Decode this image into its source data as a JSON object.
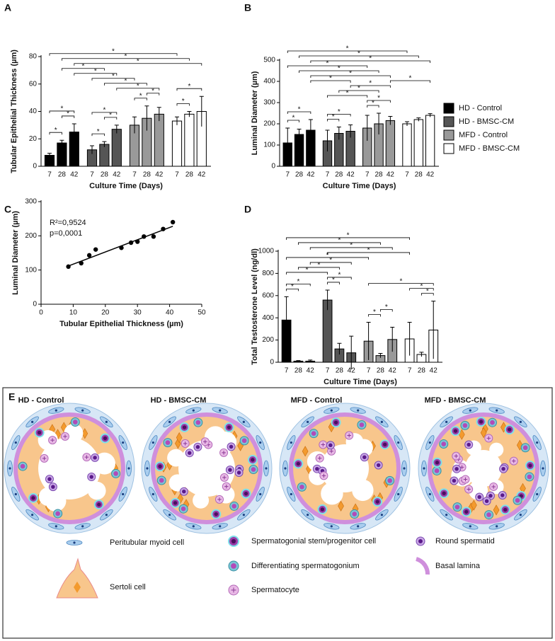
{
  "chart_data": [
    {
      "type": "bar",
      "label": "A",
      "ylabel": "Tubular Epithelial Thickness (µm)",
      "xlabel": "Culture Time (Days)",
      "categories": [
        "7",
        "28",
        "42"
      ],
      "series": [
        {
          "name": "HD - Control",
          "color": "#000000",
          "values": [
            8,
            17,
            25
          ],
          "errors": [
            1.5,
            2,
            6
          ]
        },
        {
          "name": "HD - BMSC-CM",
          "color": "#555555",
          "values": [
            12,
            16,
            27
          ],
          "errors": [
            3,
            2,
            3
          ]
        },
        {
          "name": "MFD - Control",
          "color": "#999999",
          "values": [
            30,
            35,
            38
          ],
          "errors": [
            6,
            9,
            5
          ]
        },
        {
          "name": "MFD - BMSC-CM",
          "color": "#ffffff",
          "values": [
            33,
            38,
            40
          ],
          "errors": [
            3,
            2,
            11
          ]
        }
      ],
      "ylim": [
        0,
        80
      ],
      "yticks": [
        0,
        20,
        40,
        60,
        80
      ],
      "comparisons": [
        {
          "bars": [
            0,
            1
          ],
          "label": "*"
        },
        {
          "bars": [
            1,
            2
          ],
          "label": "*"
        },
        {
          "bars": [
            0,
            2
          ],
          "label": "*"
        },
        {
          "bars": [
            3,
            4
          ],
          "label": "*"
        },
        {
          "bars": [
            4,
            5
          ],
          "label": "*"
        },
        {
          "bars": [
            3,
            5
          ],
          "label": "*"
        },
        {
          "bars": [
            6,
            7
          ],
          "label": "*"
        },
        {
          "bars": [
            7,
            8
          ],
          "label": "*"
        },
        {
          "bars": [
            9,
            10
          ],
          "label": "*"
        },
        {
          "bars": [
            9,
            11
          ],
          "label": "*"
        },
        {
          "bars": [
            5,
            8
          ],
          "label": "*"
        },
        {
          "bars": [
            4,
            7
          ],
          "label": "*"
        },
        {
          "bars": [
            3,
            6
          ],
          "label": "*"
        },
        {
          "bars": [
            2,
            5
          ],
          "label": "*"
        },
        {
          "bars": [
            1,
            4
          ],
          "label": "*"
        },
        {
          "bars": [
            2,
            11
          ],
          "label": "*"
        },
        {
          "bars": [
            1,
            10
          ],
          "label": "*"
        },
        {
          "bars": [
            0,
            9
          ],
          "label": "*"
        }
      ]
    },
    {
      "type": "bar",
      "label": "B",
      "ylabel": "Luminal Diameter (µm)",
      "xlabel": "Culture Time (Days)",
      "categories": [
        "7",
        "28",
        "42"
      ],
      "series": [
        {
          "color": "#000000",
          "values": [
            110,
            150,
            170
          ],
          "errors": [
            70,
            25,
            50
          ]
        },
        {
          "color": "#555555",
          "values": [
            120,
            155,
            165
          ],
          "errors": [
            50,
            30,
            30
          ]
        },
        {
          "color": "#999999",
          "values": [
            180,
            200,
            215
          ],
          "errors": [
            60,
            50,
            20
          ]
        },
        {
          "color": "#ffffff",
          "values": [
            200,
            220,
            240
          ],
          "errors": [
            10,
            8,
            8
          ]
        }
      ],
      "ylim": [
        0,
        500
      ],
      "yticks": [
        0,
        100,
        200,
        300,
        400,
        500
      ],
      "comparisons": [
        {
          "bars": [
            0,
            1
          ],
          "label": "*"
        },
        {
          "bars": [
            0,
            2
          ],
          "label": "*"
        },
        {
          "bars": [
            3,
            4
          ],
          "label": "*"
        },
        {
          "bars": [
            3,
            5
          ],
          "label": "*"
        },
        {
          "bars": [
            6,
            7
          ],
          "label": "*"
        },
        {
          "bars": [
            6,
            8
          ],
          "label": "*"
        },
        {
          "bars": [
            3,
            6
          ],
          "label": "*"
        },
        {
          "bars": [
            4,
            7
          ],
          "label": "*"
        },
        {
          "bars": [
            5,
            8
          ],
          "label": "*"
        },
        {
          "bars": [
            8,
            11
          ],
          "label": "*"
        },
        {
          "bars": [
            2,
            5
          ],
          "label": "*"
        },
        {
          "bars": [
            2,
            8
          ],
          "label": "*"
        },
        {
          "bars": [
            1,
            7
          ],
          "label": "*"
        },
        {
          "bars": [
            0,
            6
          ],
          "label": "*"
        },
        {
          "bars": [
            2,
            11
          ],
          "label": "*"
        },
        {
          "bars": [
            1,
            10
          ],
          "label": "*"
        },
        {
          "bars": [
            0,
            9
          ],
          "label": "*"
        }
      ]
    },
    {
      "type": "scatter",
      "label": "C",
      "ylabel": "Luminal Diameter (µm)",
      "xlabel": "Tubular Epithelial Thickness (µm)",
      "x": [
        8.5,
        12.5,
        15,
        17,
        25,
        28,
        30,
        32,
        35,
        38,
        41
      ],
      "y": [
        110,
        120,
        143,
        160,
        165,
        180,
        183,
        198,
        198,
        220,
        240
      ],
      "fit_line": {
        "x": [
          8,
          41
        ],
        "y": [
          110,
          228
        ]
      },
      "annotations": [
        "R²=0,9524",
        "p=0,0001"
      ],
      "xlim": [
        0,
        50
      ],
      "xticks": [
        0,
        10,
        20,
        30,
        40,
        50
      ],
      "ylim": [
        0,
        300
      ],
      "yticks": [
        0,
        100,
        200,
        300
      ]
    },
    {
      "type": "bar",
      "label": "D",
      "ylabel": "Total Testosterone Level (ng/dl)",
      "xlabel": "Culture Time (Days)",
      "categories": [
        "7",
        "28",
        "42"
      ],
      "series": [
        {
          "color": "#000000",
          "values": [
            380,
            10,
            10
          ],
          "errors": [
            210,
            5,
            10
          ]
        },
        {
          "color": "#555555",
          "values": [
            560,
            120,
            85
          ],
          "errors": [
            90,
            50,
            150
          ]
        },
        {
          "color": "#999999",
          "values": [
            190,
            60,
            205
          ],
          "errors": [
            170,
            20,
            110
          ]
        },
        {
          "color": "#ffffff",
          "values": [
            210,
            70,
            290
          ],
          "errors": [
            150,
            20,
            260
          ]
        }
      ],
      "ylim": [
        0,
        1000
      ],
      "yticks": [
        0,
        200,
        400,
        600,
        800,
        1000
      ],
      "comparisons": [
        {
          "bars": [
            0,
            1
          ],
          "label": "*"
        },
        {
          "bars": [
            0,
            2
          ],
          "label": "*"
        },
        {
          "bars": [
            3,
            4
          ],
          "label": "*"
        },
        {
          "bars": [
            3,
            5
          ],
          "label": "*"
        },
        {
          "bars": [
            6,
            7
          ],
          "label": "*"
        },
        {
          "bars": [
            7,
            8
          ],
          "label": "*"
        },
        {
          "bars": [
            10,
            11
          ],
          "label": "*"
        },
        {
          "bars": [
            9,
            11
          ],
          "label": "*"
        },
        {
          "bars": [
            0,
            3
          ],
          "label": "*"
        },
        {
          "bars": [
            1,
            4
          ],
          "label": "*"
        },
        {
          "bars": [
            2,
            5
          ],
          "label": "*"
        },
        {
          "bars": [
            6,
            11
          ],
          "label": "*"
        },
        {
          "bars": [
            0,
            6
          ],
          "label": "*"
        },
        {
          "bars": [
            3,
            9
          ],
          "label": "*"
        },
        {
          "bars": [
            2,
            8
          ],
          "label": "*"
        },
        {
          "bars": [
            1,
            7
          ],
          "label": "*"
        },
        {
          "bars": [
            0,
            9
          ],
          "label": "*"
        }
      ]
    }
  ],
  "diagram": {
    "label": "E",
    "conditions": [
      "HD - Control",
      "HD - BMSC-CM",
      "MFD - Control",
      "MFD - BMSC-CM"
    ],
    "legend": [
      "Peritubular myoid cell",
      "Sertoli cell",
      "Spermatogonial stem/progenitor cell",
      "Differentiating spermatogonium",
      "Spermatocyte",
      "Round spermatid",
      "Basal lamina"
    ]
  }
}
